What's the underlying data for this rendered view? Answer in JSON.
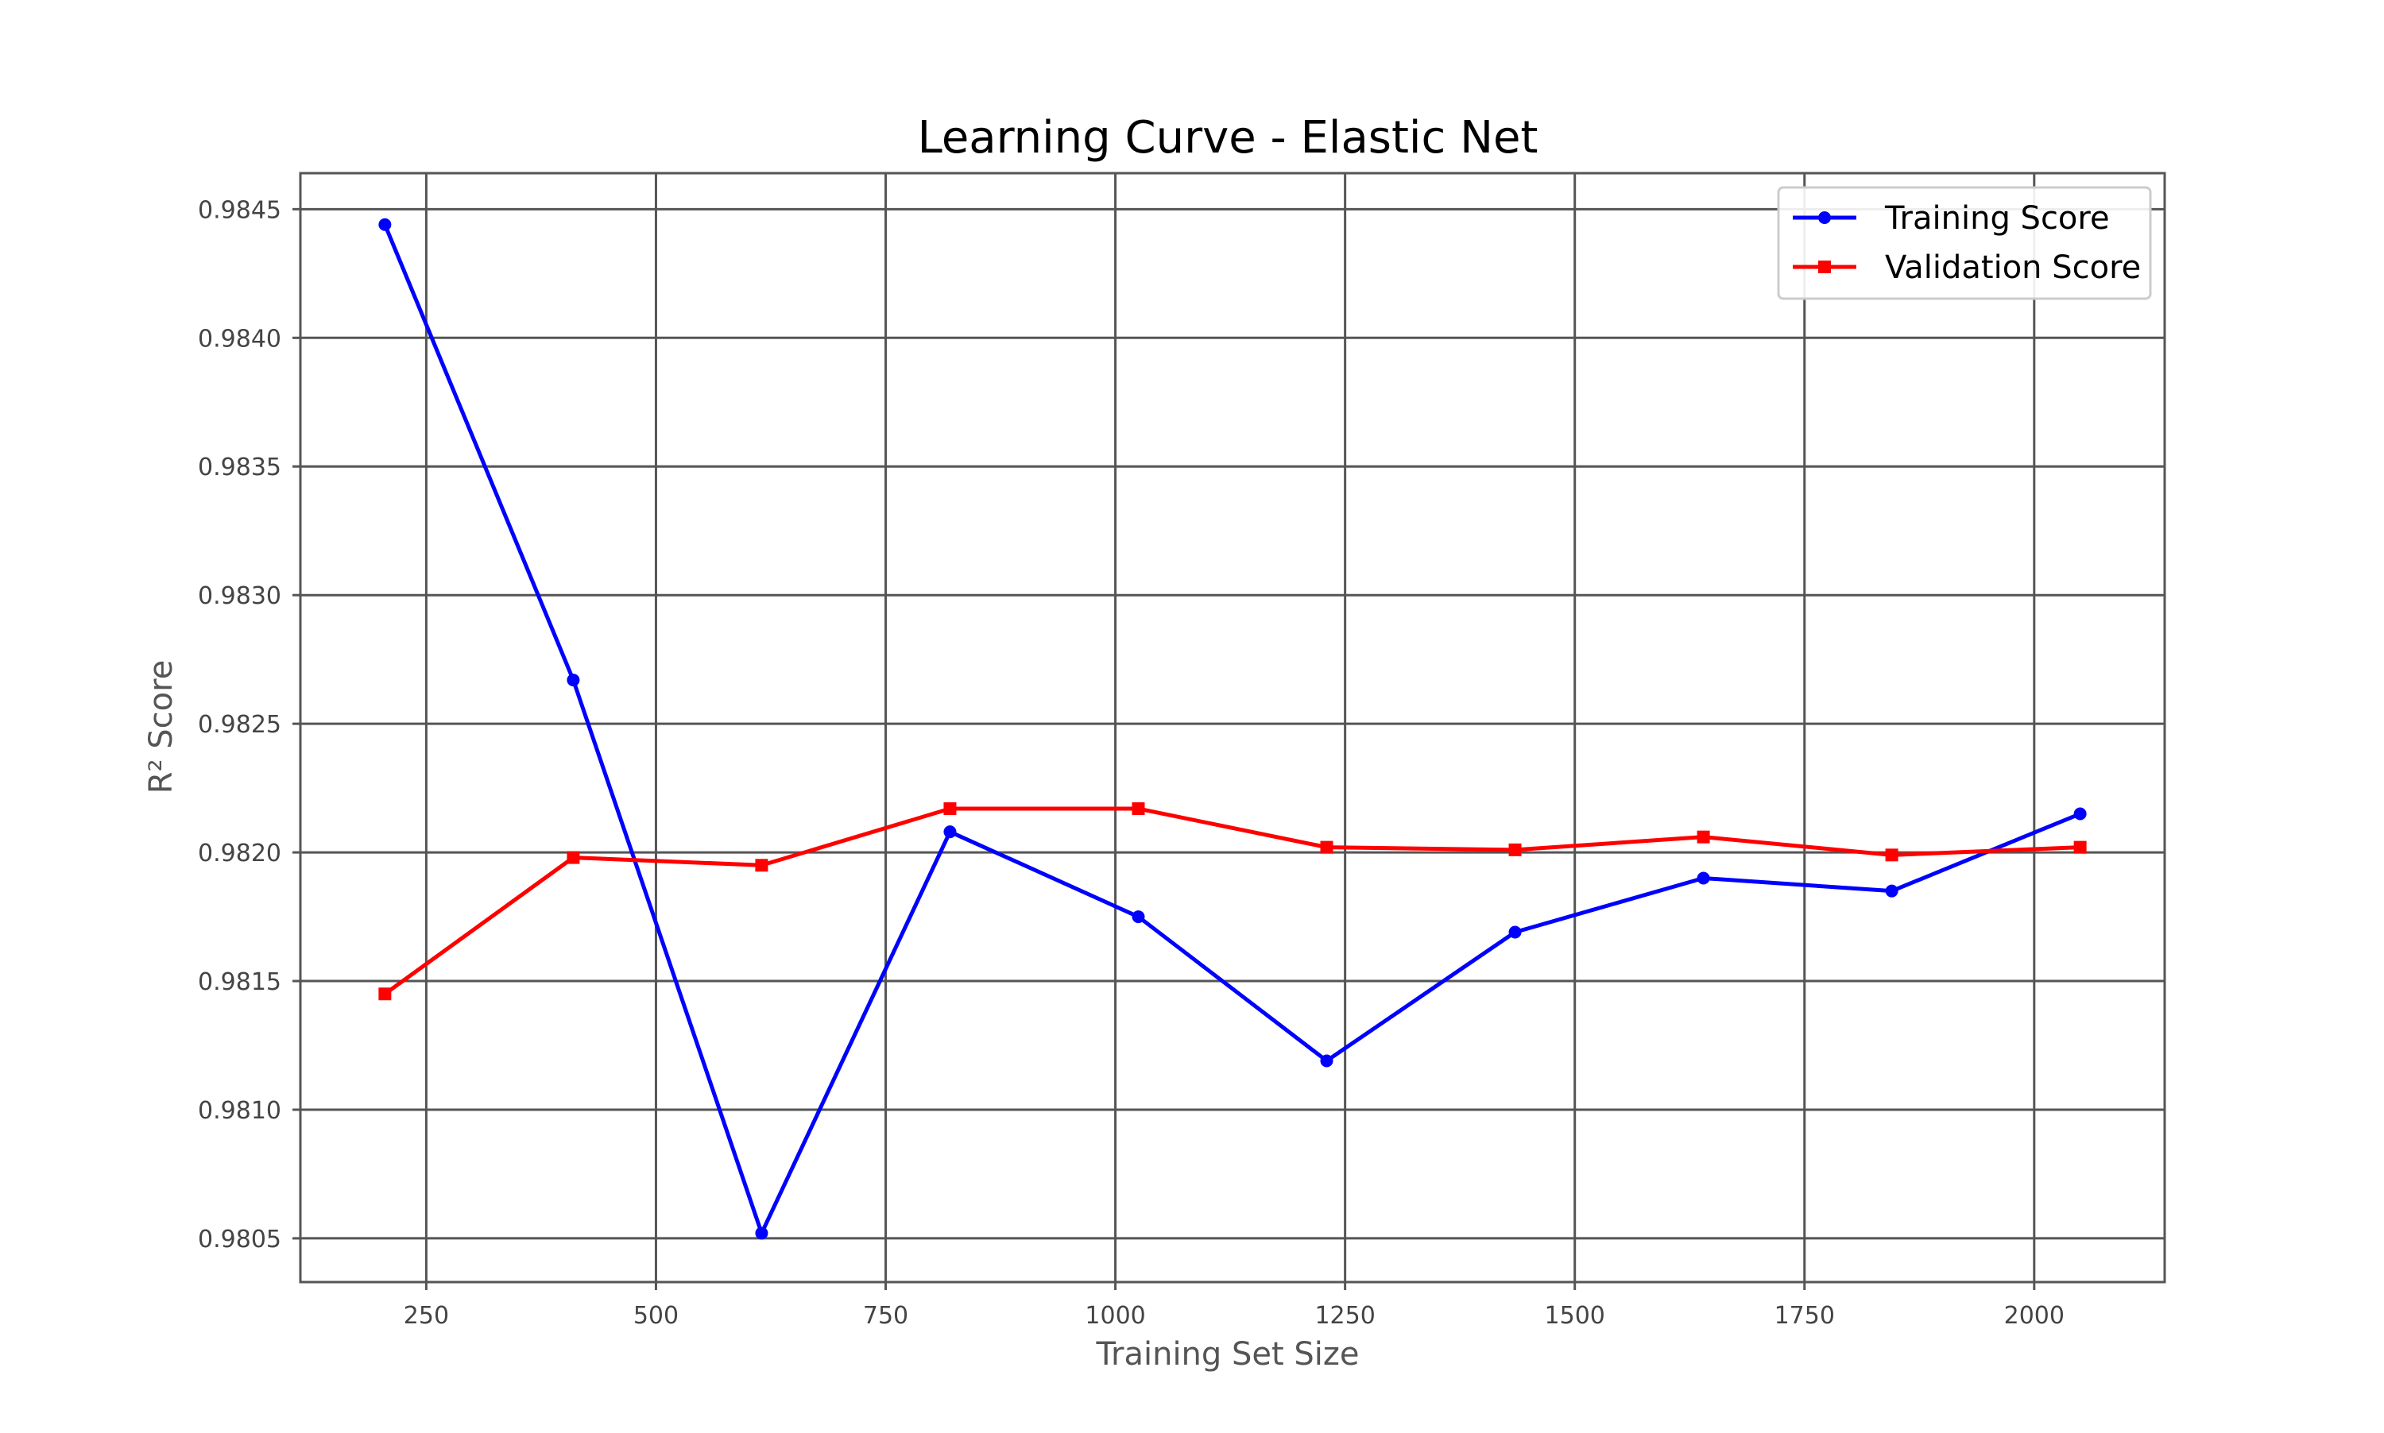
{
  "chart_data": {
    "type": "line",
    "title": "Learning Curve - Elastic Net",
    "xlabel": "Training Set Size",
    "ylabel": "R² Score",
    "x": [
      205,
      410,
      615,
      820,
      1025,
      1230,
      1435,
      1640,
      1845,
      2050
    ],
    "series": [
      {
        "name": "Training Score",
        "color": "#0000ff",
        "marker": "circle",
        "values": [
          0.98444,
          0.98267,
          0.98052,
          0.98208,
          0.98175,
          0.98119,
          0.98169,
          0.9819,
          0.98185,
          0.98215
        ]
      },
      {
        "name": "Validation Score",
        "color": "#ff0000",
        "marker": "square",
        "values": [
          0.98145,
          0.98198,
          0.98195,
          0.98217,
          0.98217,
          0.98202,
          0.98201,
          0.98206,
          0.98199,
          0.98202
        ]
      }
    ],
    "xlim": [
      113,
      2142
    ],
    "ylim": [
      0.98033,
      0.98464
    ],
    "xticks": [
      250,
      500,
      750,
      1000,
      1250,
      1500,
      1750,
      2000
    ],
    "xtick_labels": [
      "250",
      "500",
      "750",
      "1000",
      "1250",
      "1500",
      "1750",
      "2000"
    ],
    "yticks": [
      0.9805,
      0.981,
      0.9815,
      0.982,
      0.9825,
      0.983,
      0.9835,
      0.984,
      0.9845
    ],
    "ytick_labels": [
      "0.9805",
      "0.9810",
      "0.9815",
      "0.9820",
      "0.9825",
      "0.9830",
      "0.9835",
      "0.9840",
      "0.9845"
    ],
    "grid": true,
    "legend_position": "top-right"
  }
}
